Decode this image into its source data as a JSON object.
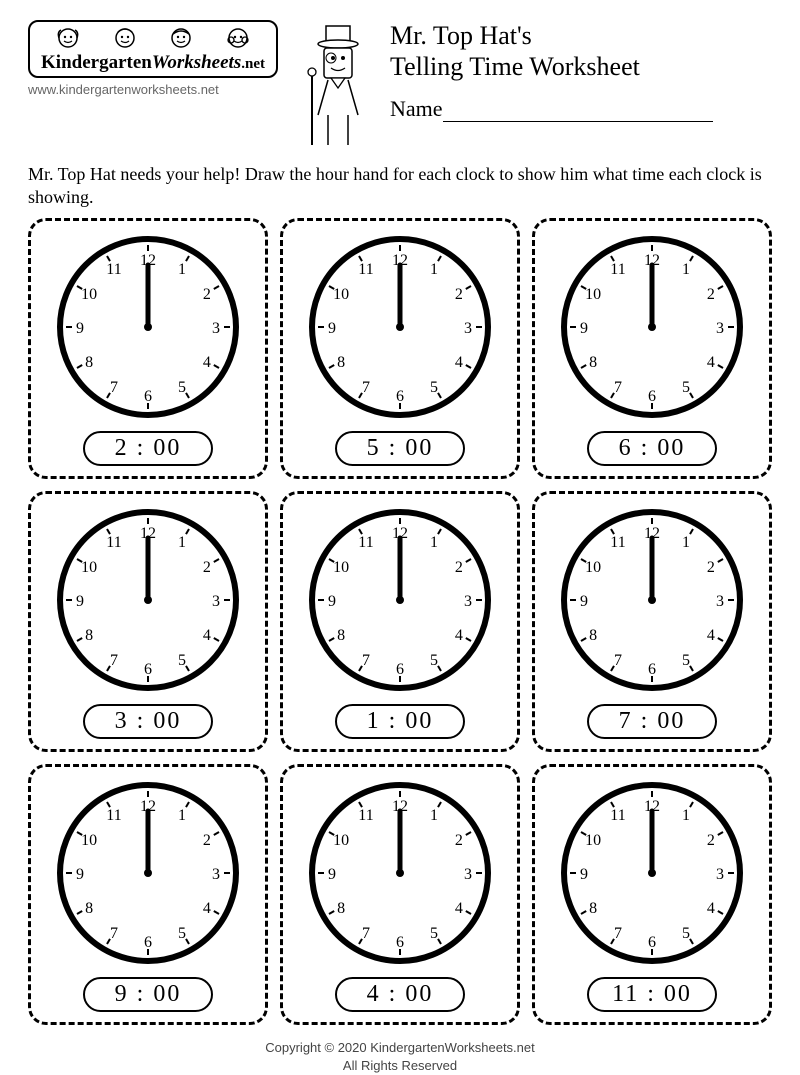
{
  "logo": {
    "text_a": "Kindergarten",
    "text_b": "Worksheets",
    "text_c": ".net",
    "url": "www.kindergartenworksheets.net"
  },
  "title": {
    "line1": "Mr. Top Hat's",
    "line2": "Telling Time Worksheet"
  },
  "name_label": "Name",
  "instructions": "Mr. Top Hat needs your help! Draw the hour hand for each clock to show him what time each clock is showing.",
  "clock": {
    "numbers": [
      "12",
      "1",
      "2",
      "3",
      "4",
      "5",
      "6",
      "7",
      "8",
      "9",
      "10",
      "11"
    ],
    "face_stroke": "#000000",
    "face_fill": "#ffffff",
    "outer_stroke_width": 6,
    "radius": 88,
    "num_radius": 68,
    "tick_radius_out": 82,
    "tick_radius_in": 76,
    "minute_hand_length": 62,
    "hand_stroke_width": 5
  },
  "clocks": [
    {
      "time": "2 : 00"
    },
    {
      "time": "5 : 00"
    },
    {
      "time": "6 : 00"
    },
    {
      "time": "3 : 00"
    },
    {
      "time": "1 : 00"
    },
    {
      "time": "7 : 00"
    },
    {
      "time": "9 : 00"
    },
    {
      "time": "4 : 00"
    },
    {
      "time": "11 : 00"
    }
  ],
  "footer": {
    "line1": "Copyright © 2020 KindergartenWorksheets.net",
    "line2": "All Rights Reserved"
  },
  "colors": {
    "text": "#000000",
    "background": "#ffffff",
    "muted": "#666666"
  }
}
